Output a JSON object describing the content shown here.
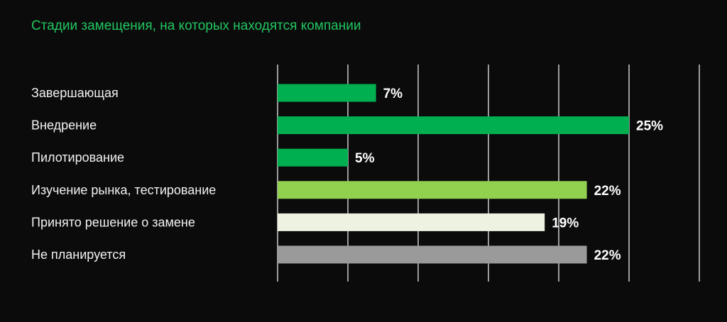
{
  "chart_data": {
    "type": "bar",
    "orientation": "horizontal",
    "title": "Стадии замещения, на которых находятся компании",
    "categories": [
      "Завершающая",
      "Внедрение",
      "Пилотирование",
      "Изучение рынка, тестирование",
      "Принято решение о замене",
      "Не планируется"
    ],
    "values": [
      7,
      25,
      5,
      22,
      19,
      22
    ],
    "value_labels": [
      "7%",
      "25%",
      "5%",
      "22%",
      "19%",
      "22%"
    ],
    "bar_colors": [
      "#00b050",
      "#00b050",
      "#00b050",
      "#92d050",
      "#eef2e0",
      "#9a9a9a"
    ],
    "xlim": [
      0,
      30
    ],
    "gridlines": [
      0,
      5,
      10,
      15,
      20,
      25,
      30
    ],
    "grid": true,
    "legend": "none"
  },
  "colors": {
    "background": "#0b0b0c",
    "title": "#22c55e",
    "text": "#f2f2f2",
    "grid": "#d9d9d9"
  }
}
